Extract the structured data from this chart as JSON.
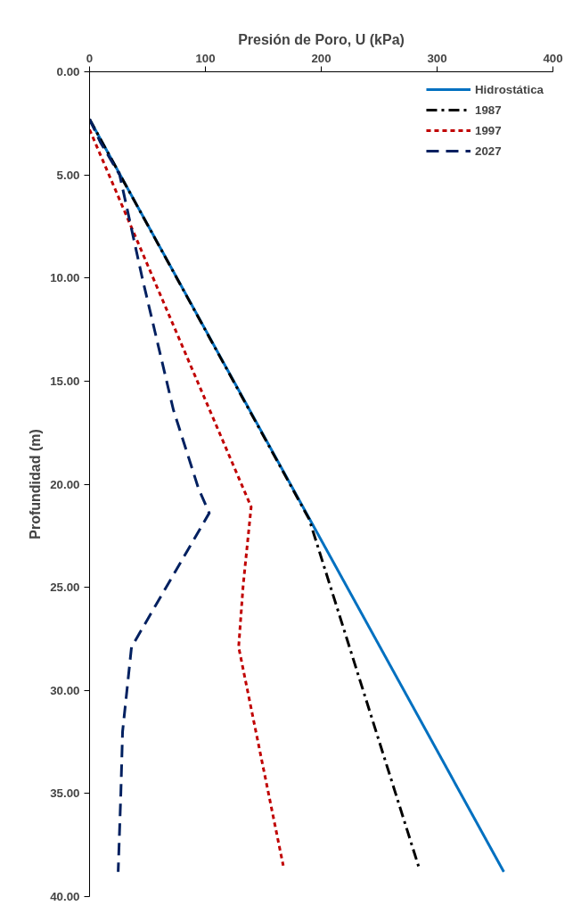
{
  "chart_data": {
    "type": "line",
    "xlabel": "Presión de Poro, U (kPa)",
    "ylabel": "Profundidad (m)",
    "xlim": [
      0,
      400
    ],
    "xticks": [
      0,
      100,
      200,
      300,
      400
    ],
    "ylim": [
      40,
      0
    ],
    "yticks": [
      {
        "value": 0,
        "label": "0.00"
      },
      {
        "value": 5,
        "label": "5.00"
      },
      {
        "value": 10,
        "label": "10.00"
      },
      {
        "value": 15,
        "label": "15.00"
      },
      {
        "value": 20,
        "label": "20.00"
      },
      {
        "value": 25,
        "label": "25.00"
      },
      {
        "value": 30,
        "label": "30.00"
      },
      {
        "value": 35,
        "label": "35.00"
      },
      {
        "value": 40,
        "label": "40.00"
      }
    ],
    "grid": false,
    "legend": "top right",
    "marker": "none",
    "series": [
      {
        "name": "Hidrostática",
        "color": "#0070c0",
        "line_style": "solid",
        "x": [
          0,
          357.6
        ],
        "values": [
          2.3,
          38.8
        ]
      },
      {
        "name": "1987",
        "color": "#000000",
        "line_style": "dashdot",
        "x": [
          0,
          189.6,
          284.4
        ],
        "values": [
          2.3,
          21.7,
          38.6
        ]
      },
      {
        "name": "1997",
        "color": "#c00000",
        "line_style": "dashed",
        "x": [
          0,
          139.5,
          132.6,
          128.7,
          167.2
        ],
        "values": [
          2.8,
          21.1,
          24.9,
          27.9,
          38.5
        ]
      },
      {
        "name": "2027",
        "color": "#002060",
        "line_style": "longdash",
        "x": [
          0,
          9.2,
          26,
          45.5,
          72.4,
          94,
          103.3,
          36.2,
          28.5,
          27,
          24.7
        ],
        "values": [
          2.3,
          3.4,
          5,
          10,
          16.4,
          20.2,
          21.4,
          27.9,
          32,
          35,
          38.8
        ]
      }
    ]
  }
}
